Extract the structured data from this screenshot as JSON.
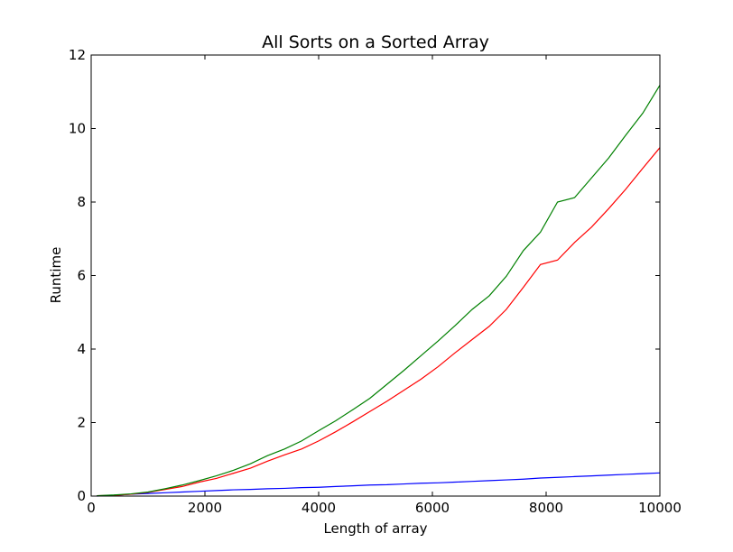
{
  "chart_data": {
    "type": "line",
    "title": "All Sorts on a Sorted Array",
    "xlabel": "Length of array",
    "ylabel": "Runtime",
    "xlim": [
      0,
      10000
    ],
    "ylim": [
      0,
      12
    ],
    "xticks": [
      0,
      2000,
      4000,
      6000,
      8000,
      10000
    ],
    "yticks": [
      0,
      2,
      4,
      6,
      8,
      10,
      12
    ],
    "grid": false,
    "legend": "none",
    "x": [
      100,
      400,
      700,
      1000,
      1300,
      1600,
      1900,
      2200,
      2500,
      2800,
      3100,
      3400,
      3700,
      4000,
      4300,
      4600,
      4900,
      5200,
      5500,
      5800,
      6100,
      6400,
      6700,
      7000,
      7300,
      7600,
      7900,
      8200,
      8500,
      8800,
      9100,
      9400,
      9700,
      10000
    ],
    "series": [
      {
        "color": "#0000ff",
        "values": [
          0.0,
          0.02,
          0.05,
          0.07,
          0.09,
          0.11,
          0.13,
          0.15,
          0.17,
          0.18,
          0.2,
          0.21,
          0.23,
          0.24,
          0.26,
          0.28,
          0.3,
          0.31,
          0.33,
          0.35,
          0.36,
          0.38,
          0.4,
          0.42,
          0.44,
          0.46,
          0.49,
          0.51,
          0.53,
          0.55,
          0.57,
          0.59,
          0.61,
          0.63
        ]
      },
      {
        "color": "#ff0000",
        "values": [
          0.01,
          0.02,
          0.05,
          0.1,
          0.18,
          0.26,
          0.38,
          0.48,
          0.62,
          0.76,
          0.95,
          1.12,
          1.28,
          1.5,
          1.75,
          2.02,
          2.3,
          2.58,
          2.88,
          3.18,
          3.52,
          3.9,
          4.26,
          4.62,
          5.08,
          5.68,
          6.3,
          6.42,
          6.9,
          7.32,
          7.82,
          8.35,
          8.92,
          9.48
        ]
      },
      {
        "color": "#008000",
        "values": [
          0.01,
          0.03,
          0.06,
          0.11,
          0.2,
          0.3,
          0.42,
          0.55,
          0.7,
          0.88,
          1.1,
          1.28,
          1.5,
          1.78,
          2.05,
          2.35,
          2.66,
          3.04,
          3.42,
          3.82,
          4.22,
          4.64,
          5.08,
          5.45,
          5.98,
          6.68,
          7.18,
          8.0,
          8.12,
          8.66,
          9.2,
          9.82,
          10.42,
          11.18
        ]
      }
    ]
  }
}
